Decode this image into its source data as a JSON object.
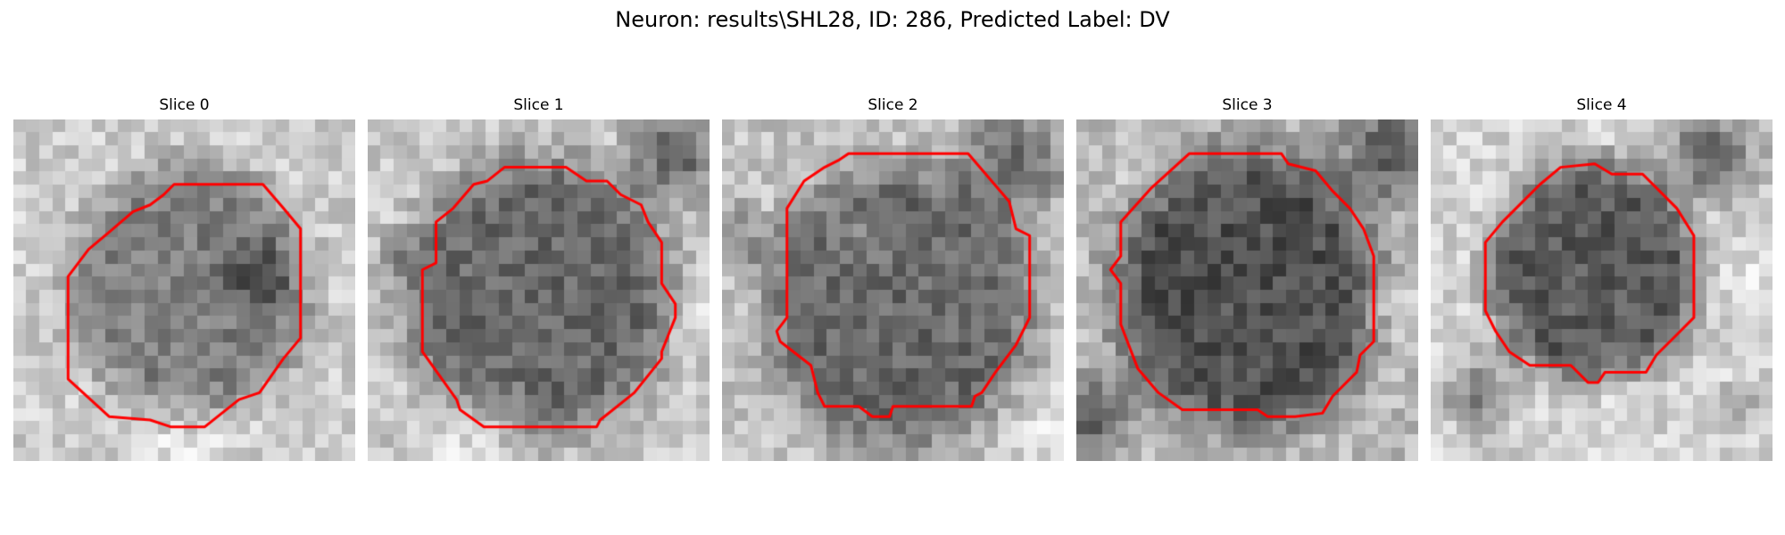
{
  "figure": {
    "title": "Neuron: results\\SHL28, ID: 286, Predicted Label: DV",
    "contour_color": "#ff0000"
  },
  "panels": [
    {
      "title": "Slice 0"
    },
    {
      "title": "Slice 1"
    },
    {
      "title": "Slice 2"
    },
    {
      "title": "Slice 3"
    },
    {
      "title": "Slice 4"
    }
  ]
}
